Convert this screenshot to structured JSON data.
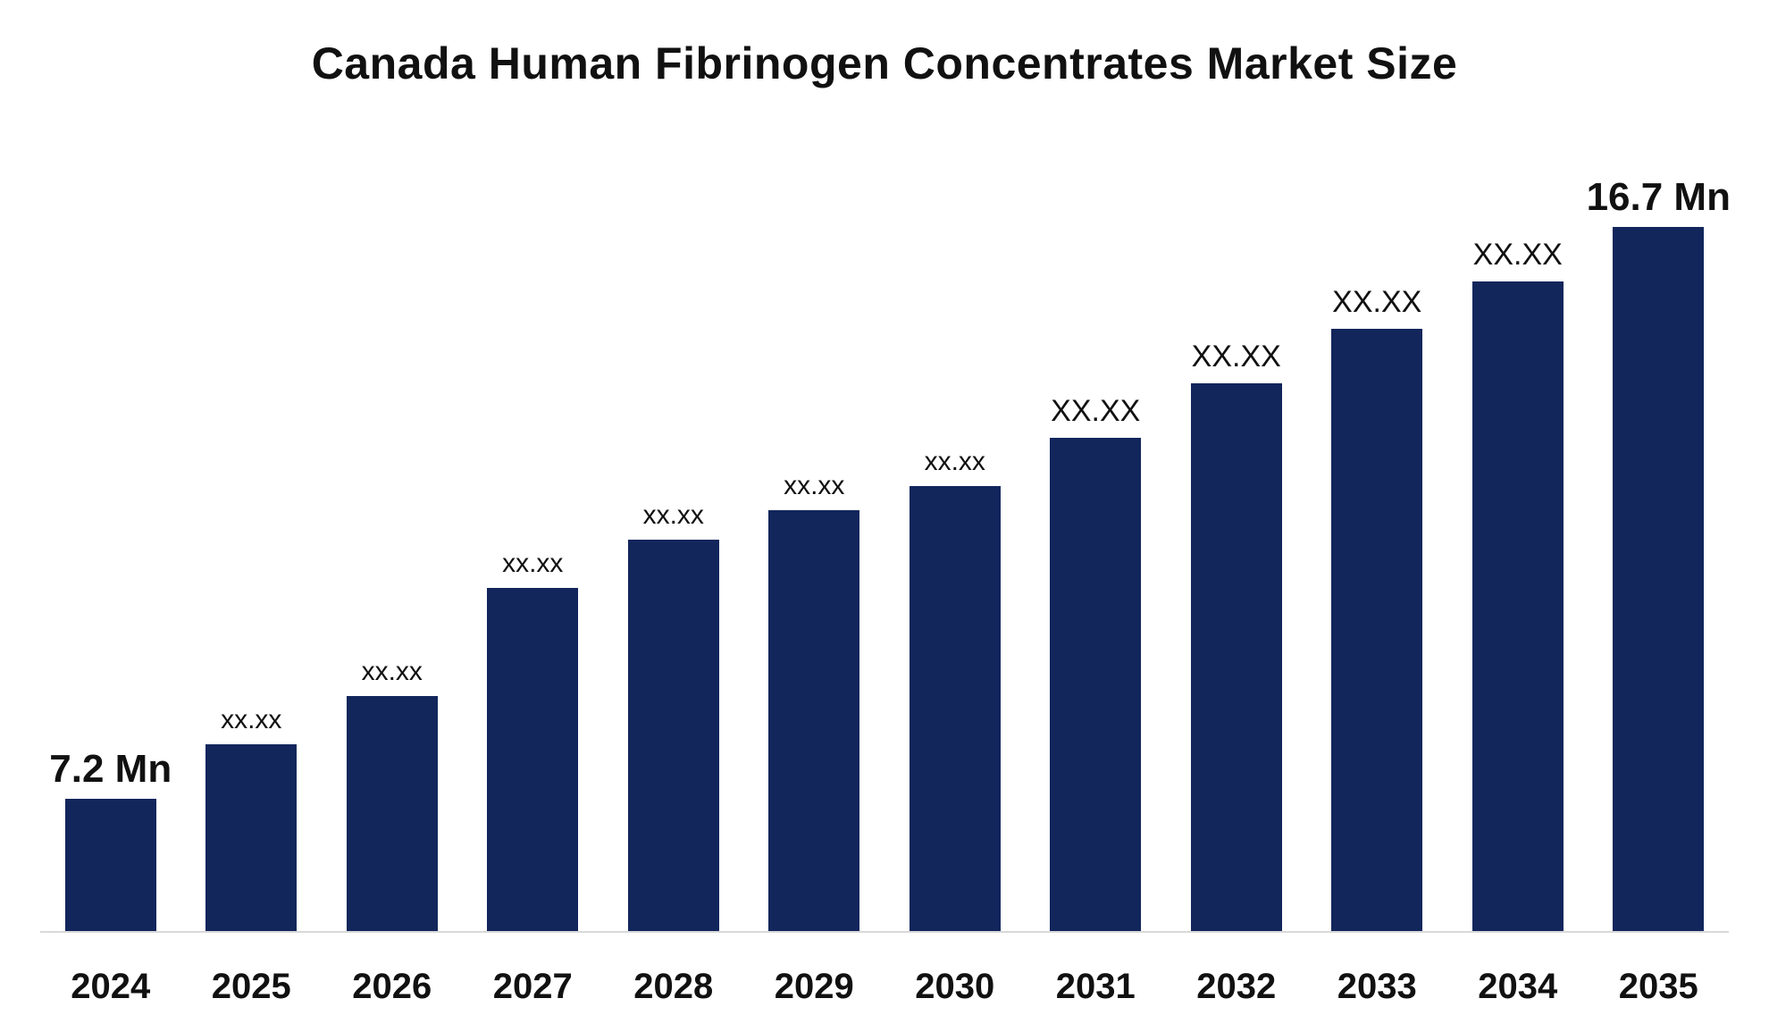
{
  "chart_data": {
    "type": "bar",
    "title": "Canada Human Fibrinogen Concentrates Market Size",
    "categories": [
      "2024",
      "2025",
      "2026",
      "2027",
      "2028",
      "2029",
      "2030",
      "2031",
      "2032",
      "2033",
      "2034",
      "2035"
    ],
    "values": [
      7.2,
      8.1,
      8.9,
      10.7,
      11.5,
      12.0,
      12.4,
      13.2,
      14.1,
      15.0,
      15.8,
      16.7
    ],
    "labels": [
      "7.2 Mn",
      "xx.xx",
      "xx.xx",
      "xx.xx",
      "xx.xx",
      "xx.xx",
      "xx.xx",
      "XX.XX",
      "XX.XX",
      "XX.XX",
      "XX.XX",
      "16.7 Mn"
    ],
    "unit": "Mn",
    "first_value_label": "7.2 Mn",
    "last_value_label": "16.7 Mn",
    "bar_color": "#12265C",
    "axis_line_color": "#D9D9D9",
    "text_color": "#111111",
    "background_color": "#FFFFFF",
    "ylim": [
      5.0,
      16.7
    ],
    "xlabel": "",
    "ylabel": "",
    "grid": false,
    "legend": "none",
    "value_axis_visible": false
  }
}
